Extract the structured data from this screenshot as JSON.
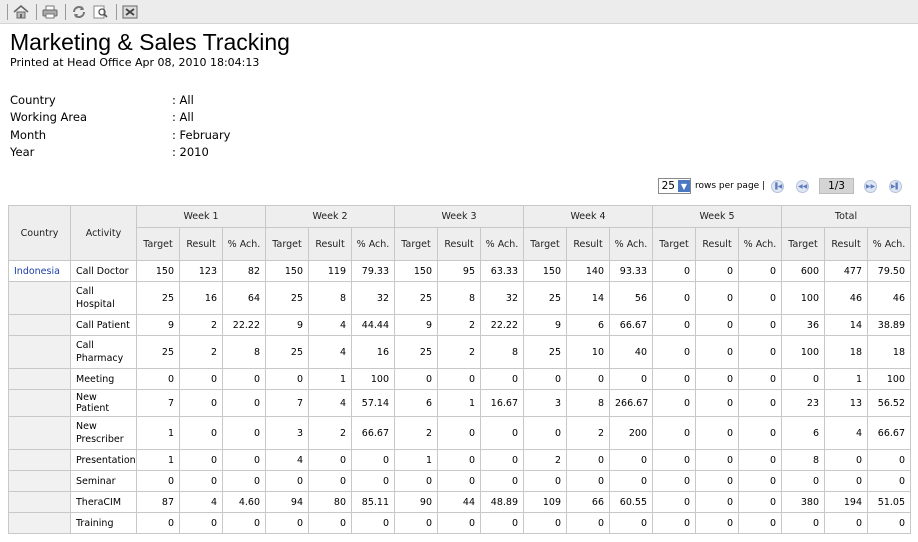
{
  "toolbar": {
    "icons": [
      "home-icon",
      "print-icon",
      "refresh-icon",
      "zoom-icon",
      "close-icon"
    ]
  },
  "report": {
    "title": "Marketing & Sales Tracking",
    "printed": "Printed at Head Office Apr 08, 2010 18:04:13"
  },
  "params": [
    {
      "label": "Country",
      "value": ": All"
    },
    {
      "label": "Working Area",
      "value": ": All"
    },
    {
      "label": "Month",
      "value": ": February"
    },
    {
      "label": "Year",
      "value": ": 2010"
    }
  ],
  "pager": {
    "rows_value": "25",
    "rows_label": "rows per page |",
    "page": "1/3"
  },
  "table": {
    "col_country": "Country",
    "col_activity": "Activity",
    "groups": [
      "Week 1",
      "Week 2",
      "Week 3",
      "Week 4",
      "Week 5",
      "Total"
    ],
    "sub": [
      "Target",
      "Result",
      "% Ach."
    ],
    "rows": [
      {
        "country": "Indonesia",
        "activity": "Call Doctor",
        "vals": [
          "150",
          "123",
          "82",
          "150",
          "119",
          "79.33",
          "150",
          "95",
          "63.33",
          "150",
          "140",
          "93.33",
          "0",
          "0",
          "0",
          "600",
          "477",
          "79.50"
        ]
      },
      {
        "country": "",
        "activity": "Call Hospital",
        "vals": [
          "25",
          "16",
          "64",
          "25",
          "8",
          "32",
          "25",
          "8",
          "32",
          "25",
          "14",
          "56",
          "0",
          "0",
          "0",
          "100",
          "46",
          "46"
        ]
      },
      {
        "country": "",
        "activity": "Call Patient",
        "vals": [
          "9",
          "2",
          "22.22",
          "9",
          "4",
          "44.44",
          "9",
          "2",
          "22.22",
          "9",
          "6",
          "66.67",
          "0",
          "0",
          "0",
          "36",
          "14",
          "38.89"
        ]
      },
      {
        "country": "",
        "activity": "Call Pharmacy",
        "vals": [
          "25",
          "2",
          "8",
          "25",
          "4",
          "16",
          "25",
          "2",
          "8",
          "25",
          "10",
          "40",
          "0",
          "0",
          "0",
          "100",
          "18",
          "18"
        ]
      },
      {
        "country": "",
        "activity": "Meeting",
        "vals": [
          "0",
          "0",
          "0",
          "0",
          "1",
          "100",
          "0",
          "0",
          "0",
          "0",
          "0",
          "0",
          "0",
          "0",
          "0",
          "0",
          "1",
          "100"
        ]
      },
      {
        "country": "",
        "activity": "New Patient",
        "vals": [
          "7",
          "0",
          "0",
          "7",
          "4",
          "57.14",
          "6",
          "1",
          "16.67",
          "3",
          "8",
          "266.67",
          "0",
          "0",
          "0",
          "23",
          "13",
          "56.52"
        ]
      },
      {
        "country": "",
        "activity": "New Prescriber",
        "vals": [
          "1",
          "0",
          "0",
          "3",
          "2",
          "66.67",
          "2",
          "0",
          "0",
          "0",
          "2",
          "200",
          "0",
          "0",
          "0",
          "6",
          "4",
          "66.67"
        ]
      },
      {
        "country": "",
        "activity": "Presentation",
        "vals": [
          "1",
          "0",
          "0",
          "4",
          "0",
          "0",
          "1",
          "0",
          "0",
          "2",
          "0",
          "0",
          "0",
          "0",
          "0",
          "8",
          "0",
          "0"
        ]
      },
      {
        "country": "",
        "activity": "Seminar",
        "vals": [
          "0",
          "0",
          "0",
          "0",
          "0",
          "0",
          "0",
          "0",
          "0",
          "0",
          "0",
          "0",
          "0",
          "0",
          "0",
          "0",
          "0",
          "0"
        ]
      },
      {
        "country": "",
        "activity": "TheraCIM",
        "vals": [
          "87",
          "4",
          "4.60",
          "94",
          "80",
          "85.11",
          "90",
          "44",
          "48.89",
          "109",
          "66",
          "60.55",
          "0",
          "0",
          "0",
          "380",
          "194",
          "51.05"
        ]
      },
      {
        "country": "",
        "activity": "Training",
        "vals": [
          "0",
          "0",
          "0",
          "0",
          "0",
          "0",
          "0",
          "0",
          "0",
          "0",
          "0",
          "0",
          "0",
          "0",
          "0",
          "0",
          "0",
          "0"
        ]
      }
    ]
  }
}
